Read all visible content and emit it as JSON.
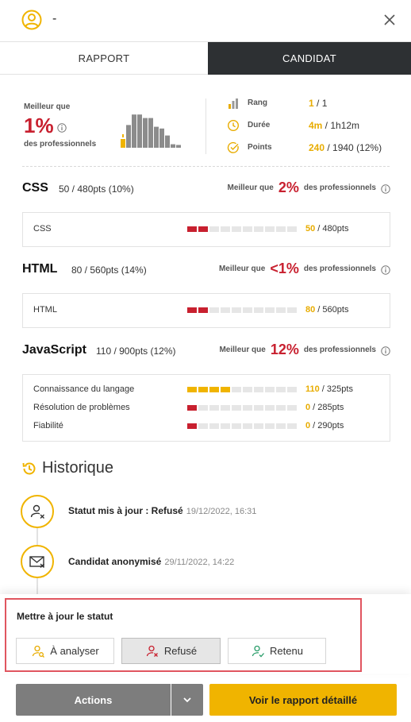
{
  "header": {
    "candidate_name": "-"
  },
  "tabs": [
    {
      "label": "RAPPORT"
    },
    {
      "label": "CANDIDAT"
    }
  ],
  "summary": {
    "better_than_label": "Meilleur que",
    "percent": "1%",
    "professionals_label": "des professionnels",
    "histogram": [
      0.25,
      0.65,
      0.95,
      0.95,
      0.85,
      0.85,
      0.6,
      0.55,
      0.35,
      0.1,
      0.08
    ],
    "highlight_index": 0,
    "stats": [
      {
        "icon": "bar-chart-icon",
        "label": "Rang",
        "value": "1",
        "rest": " / 1"
      },
      {
        "icon": "clock-icon",
        "label": "Durée",
        "value": "4m",
        "rest": " / 1h12m"
      },
      {
        "icon": "check-circle-icon",
        "label": "Points",
        "value": "240",
        "rest": " / 1940 (12%)"
      }
    ]
  },
  "skills": [
    {
      "name": "CSS",
      "score": "50 / 480pts (10%)",
      "better_than": "Meilleur que",
      "percent": "2%",
      "professionals": "des professionnels",
      "rows": [
        {
          "label": "CSS",
          "value": "50",
          "total": " / 480pts",
          "filled": 2,
          "color": "#c8202f"
        }
      ]
    },
    {
      "name": "HTML",
      "score": "80 / 560pts (14%)",
      "better_than": "Meilleur que",
      "percent": "<1%",
      "professionals": "des professionnels",
      "rows": [
        {
          "label": "HTML",
          "value": "80",
          "total": " / 560pts",
          "filled": 2,
          "color": "#c8202f"
        }
      ]
    },
    {
      "name": "JavaScript",
      "score": "110 / 900pts (12%)",
      "better_than": "Meilleur que",
      "percent": "12%",
      "professionals": "des professionnels",
      "rows": [
        {
          "label": "Connaissance du langage",
          "value": "110",
          "total": " / 325pts",
          "filled": 4,
          "color": "#f0b400"
        },
        {
          "label": "Résolution de problèmes",
          "value": "0",
          "total": " / 285pts",
          "filled": 1,
          "color": "#c8202f"
        },
        {
          "label": "Fiabilité",
          "value": "0",
          "total": " / 290pts",
          "filled": 1,
          "color": "#c8202f"
        }
      ]
    }
  ],
  "history": {
    "title": "Historique",
    "events": [
      {
        "icon": "user-refused-icon",
        "text": "Statut mis à jour : Refusé",
        "date": "19/12/2022, 16:31"
      },
      {
        "icon": "mail-anonymized-icon",
        "text": "Candidat anonymisé",
        "date": "29/11/2022, 14:22"
      }
    ]
  },
  "status_panel": {
    "title": "Mettre à jour le statut",
    "options": [
      {
        "label": "À analyser",
        "active": false
      },
      {
        "label": "Refusé",
        "active": true
      },
      {
        "label": "Retenu",
        "active": false
      }
    ]
  },
  "footer": {
    "actions_label": "Actions",
    "report_label": "Voir le rapport détaillé"
  },
  "colors": {
    "accent": "#f0b400",
    "danger": "#c8202f",
    "dark_tab": "#2d3033"
  }
}
